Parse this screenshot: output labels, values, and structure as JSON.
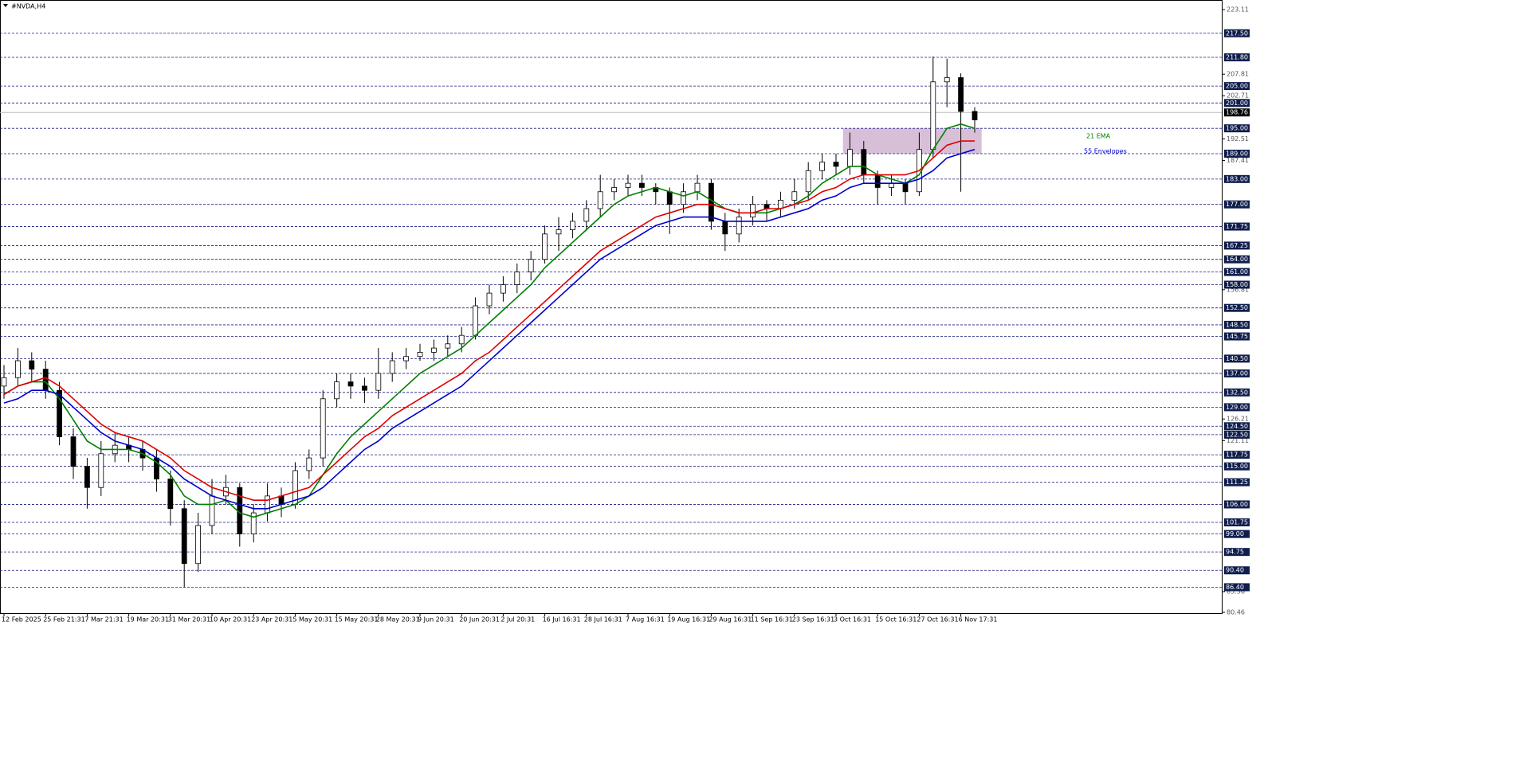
{
  "chart_data": {
    "type": "candlestick",
    "title": "#NVDA,H4",
    "categories": [
      "12 Feb 2025",
      null,
      null,
      "25 Feb 21:31",
      null,
      null,
      "7 Mar 21:31",
      null,
      null,
      "19 Mar 20:31",
      null,
      null,
      "31 Mar 20:31",
      null,
      null,
      "10 Apr 20:31",
      null,
      null,
      "23 Apr 20:31",
      null,
      null,
      "5 May 20:31",
      null,
      null,
      "15 May 20:31",
      null,
      null,
      "28 May 20:31",
      null,
      null,
      "9 Jun 20:31",
      null,
      null,
      "20 Jun 20:31",
      null,
      null,
      "2 Jul 20:31",
      null,
      null,
      "16 Jul 16:31",
      null,
      null,
      "28 Jul 16:31",
      null,
      null,
      "7 Aug 16:31",
      null,
      null,
      "19 Aug 16:31",
      null,
      null,
      "29 Aug 16:31",
      null,
      null,
      "11 Sep 16:31",
      null,
      null,
      "23 Sep 16:31",
      null,
      null,
      "3 Oct 16:31",
      null,
      null,
      "15 Oct 16:31",
      null,
      null,
      "27 Oct 16:31",
      null,
      null,
      "6 Nov 17:31",
      null
    ],
    "series": [
      {
        "open": [
          134,
          136,
          140,
          138,
          133,
          122,
          115,
          110,
          118,
          120,
          119,
          117,
          112,
          105,
          92,
          101,
          108,
          110,
          99,
          104,
          108,
          106,
          114,
          117,
          131,
          135,
          134,
          133,
          137,
          140,
          141,
          142,
          143,
          144,
          146,
          153,
          156,
          158,
          161,
          164,
          170,
          171,
          173,
          176,
          180,
          181,
          182,
          181,
          180,
          177,
          180,
          182,
          173,
          170,
          174,
          177,
          176,
          178,
          180,
          185,
          187,
          186,
          190,
          184,
          181,
          182,
          180,
          190,
          206,
          207,
          199
        ],
        "high": [
          139,
          143,
          142,
          140,
          135,
          124,
          117,
          121,
          123,
          122,
          121,
          119,
          114,
          107,
          104,
          112,
          113,
          111,
          106,
          111,
          110,
          116,
          119,
          133,
          137,
          137,
          136,
          143,
          142,
          143,
          144,
          145,
          146,
          148,
          155,
          158,
          160,
          163,
          166,
          172,
          174,
          175,
          178,
          184,
          183,
          184,
          184,
          182,
          181,
          182,
          184,
          183,
          175,
          176,
          179,
          178,
          180,
          183,
          187,
          189,
          189,
          194,
          192,
          185,
          184,
          183,
          194,
          212,
          211.5,
          208,
          200
        ],
        "low": [
          131,
          134,
          135,
          131,
          120,
          112,
          105,
          108,
          116,
          116,
          114,
          109,
          101,
          86.4,
          90,
          99,
          106,
          96,
          97,
          102,
          103,
          105,
          112,
          115,
          129,
          131,
          130,
          131,
          135,
          138,
          140,
          140,
          141,
          142,
          145,
          151,
          154,
          156,
          159,
          163,
          166,
          169,
          171,
          174,
          178,
          179,
          179,
          177,
          170,
          175,
          178,
          171,
          166,
          168,
          172,
          173,
          174,
          176,
          178,
          183,
          184,
          184,
          182,
          177,
          179,
          177,
          179,
          188,
          200,
          180,
          194
        ],
        "close": [
          136,
          140,
          138,
          133,
          122,
          115,
          110,
          118,
          120,
          119,
          117,
          112,
          105,
          92,
          101,
          108,
          110,
          99,
          104,
          108,
          106,
          114,
          117,
          131,
          135,
          134,
          133,
          137,
          140,
          141,
          142,
          143,
          144,
          146,
          153,
          156,
          158,
          161,
          164,
          170,
          171,
          173,
          176,
          180,
          181,
          182,
          181,
          180,
          177,
          180,
          182,
          173,
          170,
          174,
          177,
          176,
          178,
          180,
          185,
          187,
          186,
          190,
          184,
          181,
          182,
          180,
          190,
          206,
          207,
          199,
          197
        ]
      },
      {
        "name": "21 EMA",
        "color": "#008000",
        "values": [
          132,
          134,
          135,
          135,
          131,
          126,
          121,
          119,
          119,
          119,
          118,
          116,
          113,
          108,
          106,
          106,
          107,
          104,
          103,
          104,
          105,
          106,
          108,
          113,
          118,
          122,
          125,
          128,
          131,
          134,
          137,
          139,
          141,
          143,
          146,
          149,
          152,
          155,
          158,
          162,
          165,
          168,
          171,
          174,
          177,
          179,
          180,
          181,
          180,
          179,
          180,
          178,
          176,
          175,
          175,
          175,
          176,
          177,
          179,
          182,
          184,
          186,
          186,
          184,
          183,
          182,
          184,
          190,
          195,
          196,
          195
        ]
      },
      {
        "color": "#e00000",
        "values": [
          132,
          134,
          135,
          136,
          134,
          131,
          128,
          125,
          123,
          122,
          121,
          119,
          117,
          114,
          112,
          110,
          109,
          108,
          107,
          107,
          108,
          109,
          110,
          113,
          116,
          119,
          122,
          124,
          127,
          129,
          131,
          133,
          135,
          137,
          140,
          142,
          145,
          148,
          151,
          154,
          157,
          160,
          163,
          166,
          168,
          170,
          172,
          174,
          175,
          176,
          177,
          177,
          176,
          175,
          175,
          176,
          176,
          177,
          178,
          180,
          181,
          183,
          184,
          184,
          184,
          184,
          185,
          188,
          191,
          192,
          192
        ]
      },
      {
        "name": "55 Envelopes",
        "color": "#0000cc",
        "values": [
          130,
          131,
          133,
          133,
          132,
          129,
          126,
          123,
          121,
          120,
          119,
          117,
          115,
          112,
          110,
          108,
          107,
          106,
          105,
          105,
          106,
          107,
          108,
          110,
          113,
          116,
          119,
          121,
          124,
          126,
          128,
          130,
          132,
          134,
          137,
          140,
          143,
          146,
          149,
          152,
          155,
          158,
          161,
          164,
          166,
          168,
          170,
          172,
          173,
          174,
          174,
          174,
          173,
          173,
          173,
          173,
          174,
          175,
          176,
          178,
          179,
          181,
          182,
          182,
          182,
          182,
          183,
          185,
          188,
          189,
          190
        ]
      }
    ],
    "ylim": [
      80.27,
      225.37
    ],
    "yticks": [
      223.11,
      207.81,
      202.71,
      192.51,
      187.41,
      156.81,
      126.21,
      121.11,
      85.36,
      80.46
    ],
    "levels": [
      {
        "value": 217.5,
        "label": "217.50"
      },
      {
        "value": 211.8,
        "label": "211.80"
      },
      {
        "value": 205,
        "label": "205.00"
      },
      {
        "value": 201,
        "label": "201.00"
      },
      {
        "value": 195,
        "label": "195.00"
      },
      {
        "value": 189,
        "label": "189.00"
      },
      {
        "value": 183,
        "label": "183.00"
      },
      {
        "value": 177,
        "label": "177.00"
      },
      171.75,
      167.25,
      {
        "value": 164,
        "label": "164.00"
      },
      {
        "value": 161,
        "label": "161.00"
      },
      {
        "value": 158,
        "label": "158.00"
      },
      {
        "value": 152.5,
        "label": "152.50"
      },
      {
        "value": 148.5,
        "label": "148.50"
      },
      145.75,
      {
        "value": 140.5,
        "label": "140.50"
      },
      {
        "value": 137,
        "label": "137.00"
      },
      {
        "value": 132.5,
        "label": "132.50"
      },
      {
        "value": 129,
        "label": "129.00"
      },
      {
        "value": 124.5,
        "label": "124.50"
      },
      {
        "value": 122.5,
        "label": "122.50"
      },
      117.75,
      {
        "value": 115,
        "label": "115.00"
      },
      111.25,
      {
        "value": 106,
        "label": "106.00"
      },
      101.75,
      {
        "value": 99,
        "label": "99.00"
      },
      94.75,
      {
        "value": 90.4,
        "label": "90.40"
      },
      {
        "value": 86.4,
        "label": "86.40"
      }
    ],
    "last_price": 198.76,
    "zone": {
      "x": [
        60.5,
        70.5
      ],
      "y": [
        189,
        195
      ],
      "color": "#d8bfd8"
    }
  }
}
